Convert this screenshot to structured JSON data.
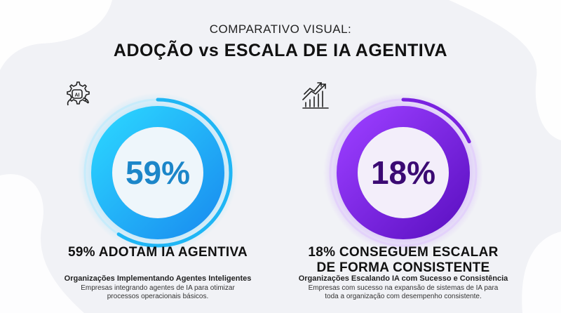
{
  "header": {
    "subtitle": "COMPARATIVO VISUAL:",
    "title": "ADOÇÃO vs ESCALA DE IA AGENTIVA"
  },
  "colors": {
    "background": "#f1f2f6",
    "cyan_accent": "#1fb6f5",
    "cyan_text": "#1c86c9",
    "purple_accent": "#7a22e0",
    "purple_text": "#3b0a73"
  },
  "chart_data": [
    {
      "type": "pie",
      "value_label": "59%",
      "value": 59,
      "heading_lines": [
        "59% ADOTAM IA AGENTIVA"
      ],
      "desc_title": "Organizações Implementando Agentes Inteligentes",
      "desc_lines": [
        "Empresas integrando agentes de IA para otimizar",
        "processos operacionais básicos."
      ],
      "icon": "ai-brain-gear-icon"
    },
    {
      "type": "pie",
      "value_label": "18%",
      "value": 18,
      "heading_lines": [
        "18% CONSEGUEM ESCALAR",
        "DE FORMA CONSISTENTE"
      ],
      "desc_title": "Organizações Escalando IA com Sucesso e Consistência",
      "desc_lines": [
        "Empresas com sucesso na expansão de sistemas de IA para",
        "toda a organização com desempenho consistente."
      ],
      "icon": "growth-chart-arrows-icon"
    }
  ]
}
